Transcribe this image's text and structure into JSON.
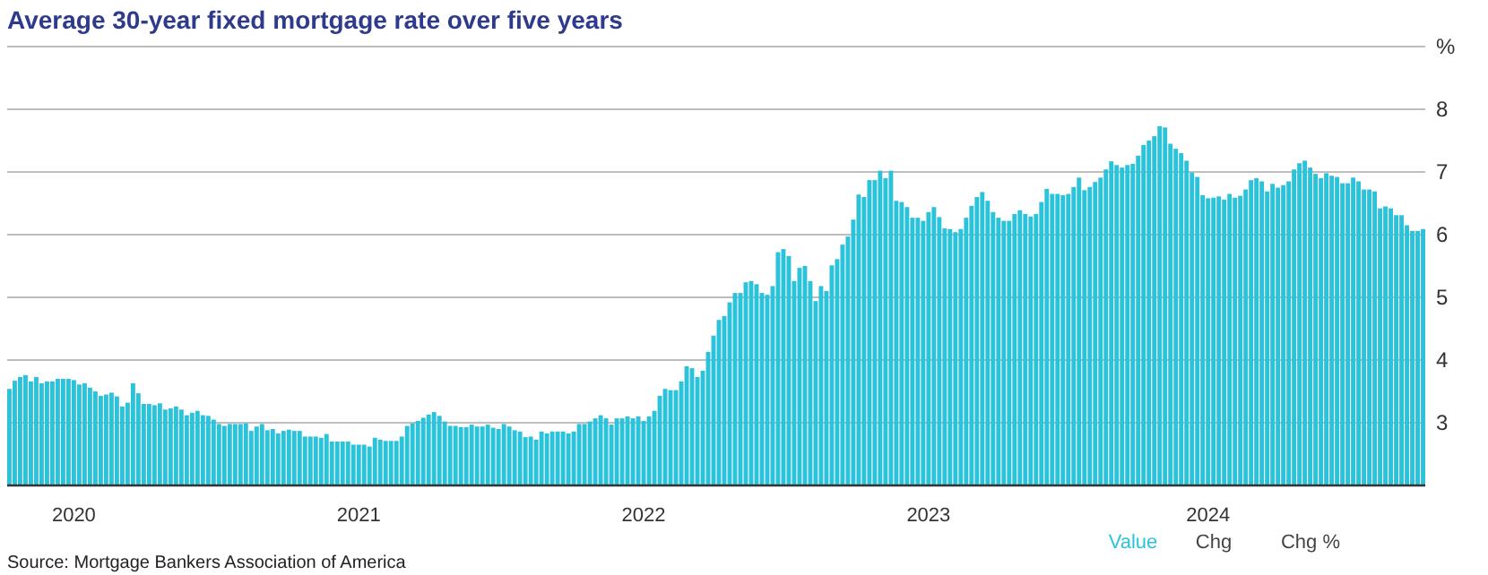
{
  "chart_data": {
    "type": "bar",
    "title": "Average 30-year fixed mortgage rate over five years",
    "categories": [
      null,
      null,
      null,
      null,
      null,
      null,
      null,
      null,
      null,
      null,
      null,
      null,
      "2020",
      null,
      null,
      null,
      null,
      null,
      null,
      null,
      null,
      null,
      null,
      null,
      null,
      null,
      null,
      null,
      null,
      null,
      null,
      null,
      null,
      null,
      null,
      null,
      null,
      null,
      null,
      null,
      null,
      null,
      null,
      null,
      null,
      null,
      null,
      null,
      null,
      null,
      null,
      null,
      null,
      null,
      null,
      null,
      null,
      null,
      null,
      null,
      null,
      null,
      null,
      null,
      null,
      "2021",
      null,
      null,
      null,
      null,
      null,
      null,
      null,
      null,
      null,
      null,
      null,
      null,
      null,
      null,
      null,
      null,
      null,
      null,
      null,
      null,
      null,
      null,
      null,
      null,
      null,
      null,
      null,
      null,
      null,
      null,
      null,
      null,
      null,
      null,
      null,
      null,
      null,
      null,
      null,
      null,
      null,
      null,
      null,
      null,
      null,
      null,
      null,
      null,
      null,
      null,
      null,
      null,
      "2022",
      null,
      null,
      null,
      null,
      null,
      null,
      null,
      null,
      null,
      null,
      null,
      null,
      null,
      null,
      null,
      null,
      null,
      null,
      null,
      null,
      null,
      null,
      null,
      null,
      null,
      null,
      null,
      null,
      null,
      null,
      null,
      null,
      null,
      null,
      null,
      null,
      null,
      null,
      null,
      null,
      null,
      null,
      null,
      null,
      null,
      null,
      null,
      null,
      null,
      null,
      null,
      null,
      "2023",
      null,
      null,
      null,
      null,
      null,
      null,
      null,
      null,
      null,
      null,
      null,
      null,
      null,
      null,
      null,
      null,
      null,
      null,
      null,
      null,
      null,
      null,
      null,
      null,
      null,
      null,
      null,
      null,
      null,
      null,
      null,
      null,
      null,
      null,
      null,
      null,
      null,
      null,
      null,
      null,
      null,
      null,
      null,
      null,
      null,
      null,
      null,
      null,
      null,
      null,
      null,
      "2024",
      null,
      null,
      null,
      null,
      null,
      null,
      null,
      null,
      null,
      null,
      null,
      null,
      null,
      null,
      null,
      null,
      null,
      null,
      null,
      null,
      null,
      null,
      null,
      null,
      null,
      null,
      null,
      null,
      null,
      null,
      null,
      null,
      null,
      null,
      null,
      null,
      null,
      null,
      null,
      null
    ],
    "series": [
      {
        "name": "Value",
        "color": "#2cc3da",
        "values": [
          3.54,
          3.67,
          3.73,
          3.76,
          3.66,
          3.73,
          3.63,
          3.66,
          3.66,
          3.7,
          3.7,
          3.7,
          3.68,
          3.61,
          3.63,
          3.56,
          3.5,
          3.43,
          3.45,
          3.48,
          3.42,
          3.26,
          3.32,
          3.63,
          3.47,
          3.3,
          3.3,
          3.28,
          3.31,
          3.21,
          3.23,
          3.26,
          3.21,
          3.12,
          3.16,
          3.19,
          3.12,
          3.11,
          3.05,
          2.98,
          2.95,
          2.98,
          2.98,
          2.98,
          2.99,
          2.87,
          2.94,
          2.98,
          2.88,
          2.9,
          2.83,
          2.87,
          2.89,
          2.87,
          2.87,
          2.78,
          2.78,
          2.78,
          2.76,
          2.82,
          2.7,
          2.7,
          2.7,
          2.7,
          2.65,
          2.65,
          2.65,
          2.62,
          2.76,
          2.73,
          2.71,
          2.71,
          2.71,
          2.78,
          2.95,
          2.99,
          3.03,
          3.08,
          3.13,
          3.17,
          3.11,
          3.02,
          2.95,
          2.95,
          2.93,
          2.93,
          2.97,
          2.94,
          2.94,
          2.97,
          2.92,
          2.9,
          2.98,
          2.94,
          2.88,
          2.86,
          2.77,
          2.78,
          2.73,
          2.86,
          2.83,
          2.86,
          2.86,
          2.86,
          2.83,
          2.86,
          2.98,
          2.98,
          3.02,
          3.07,
          3.12,
          3.07,
          2.97,
          3.07,
          3.07,
          3.1,
          3.07,
          3.1,
          3.03,
          3.1,
          3.19,
          3.43,
          3.54,
          3.52,
          3.52,
          3.66,
          3.9,
          3.87,
          3.73,
          3.83,
          4.13,
          4.39,
          4.64,
          4.7,
          4.92,
          5.07,
          5.07,
          5.24,
          5.26,
          5.21,
          5.07,
          5.04,
          5.18,
          5.72,
          5.77,
          5.66,
          5.26,
          5.47,
          5.5,
          5.26,
          4.94,
          5.18,
          5.1,
          5.51,
          5.61,
          5.84,
          5.97,
          6.24,
          6.64,
          6.6,
          6.87,
          6.87,
          7.02,
          6.9,
          7.02,
          6.54,
          6.52,
          6.44,
          6.27,
          6.27,
          6.22,
          6.36,
          6.44,
          6.28,
          6.1,
          6.09,
          6.04,
          6.09,
          6.27,
          6.46,
          6.6,
          6.68,
          6.54,
          6.36,
          6.27,
          6.22,
          6.22,
          6.33,
          6.39,
          6.33,
          6.29,
          6.33,
          6.52,
          6.73,
          6.65,
          6.65,
          6.63,
          6.65,
          6.76,
          6.91,
          6.71,
          6.76,
          6.84,
          6.91,
          7.04,
          7.17,
          7.11,
          7.07,
          7.11,
          7.13,
          7.26,
          7.43,
          7.5,
          7.57,
          7.73,
          7.71,
          7.45,
          7.37,
          7.3,
          7.18,
          6.99,
          6.92,
          6.63,
          6.58,
          6.59,
          6.61,
          6.56,
          6.65,
          6.59,
          6.62,
          6.72,
          6.87,
          6.9,
          6.85,
          6.69,
          6.81,
          6.75,
          6.79,
          6.85,
          7.04,
          7.14,
          7.18,
          7.07,
          6.97,
          6.9,
          6.98,
          6.94,
          6.92,
          6.82,
          6.82,
          6.91,
          6.85,
          6.72,
          6.72,
          6.69,
          6.42,
          6.45,
          6.42,
          6.31,
          6.31,
          6.15,
          6.06,
          6.06,
          6.09
        ]
      }
    ],
    "ylim": [
      2,
      9
    ],
    "yticks": [
      3,
      4,
      5,
      6,
      7,
      8,
      {
        "value": 9,
        "label": "%"
      }
    ],
    "grid": "y",
    "legend": "bottom right",
    "annotations": [
      "Chg",
      "Chg %",
      "Source: Mortgage Bankers Association of America"
    ]
  }
}
